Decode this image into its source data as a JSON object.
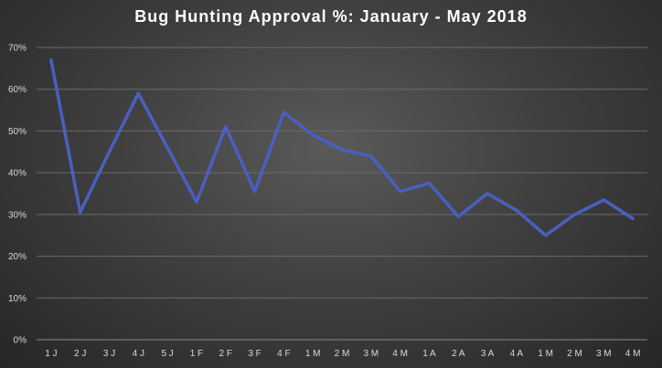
{
  "chart_data": {
    "type": "line",
    "title": "Bug Hunting  Approval %: January  - May 2018",
    "xlabel": "",
    "ylabel": "",
    "categories": [
      "1 J",
      "2 J",
      "3 J",
      "4 J",
      "5 J",
      "1 F",
      "2 F",
      "3 F",
      "4 F",
      "1 M",
      "2 M",
      "3 M",
      "4 M",
      "1 A",
      "2 A",
      "3 A",
      "4 A",
      "1 M",
      "2 M",
      "3 M",
      "4 M"
    ],
    "series": [
      {
        "values": [
          67,
          30.5,
          45,
          59,
          46,
          33,
          51,
          35.5,
          54.5,
          49,
          45.5,
          44,
          35.5,
          37.5,
          29.5,
          35,
          31,
          25,
          30,
          33.5,
          29
        ],
        "color": "#4a5fc1"
      }
    ],
    "ylim": [
      0,
      70
    ],
    "yticks": [
      "0%",
      "10%",
      "20%",
      "30%",
      "40%",
      "50%",
      "60%",
      "70%"
    ],
    "ytick_values": [
      0,
      10,
      20,
      30,
      40,
      50,
      60,
      70
    ],
    "grid": true,
    "legend": "none",
    "background": "#404040",
    "gridline_color": "#6a6a6a"
  }
}
